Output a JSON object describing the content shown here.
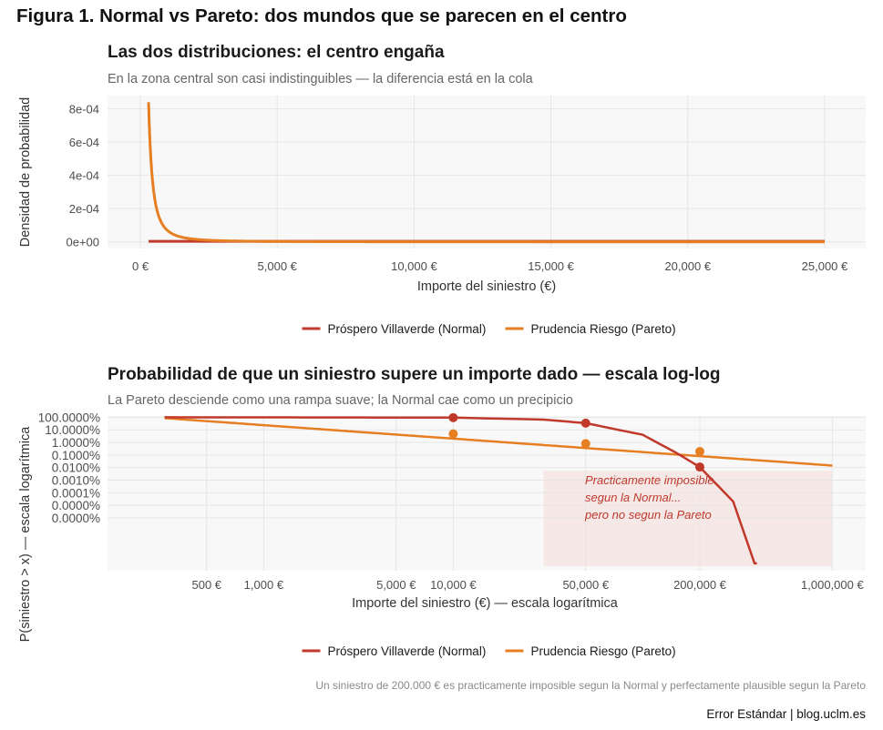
{
  "figure": {
    "title": "Figura 1. Normal vs Pareto: dos mundos que se parecen en el centro",
    "footnote": "Un siniestro de 200.000 € es practicamente imposible segun la Normal y perfectamente plausible segun la Pareto",
    "credit": "Error Estándar | blog.uclm.es"
  },
  "colors": {
    "normal": "#c0392b",
    "pareto": "#e67e22",
    "annotation_text": "#c0392b",
    "annotation_fill": "#f5e3e1"
  },
  "chart_data": [
    {
      "type": "line",
      "title": "Las dos distribuciones: el centro engaña",
      "subtitle": "En la zona central son casi indistinguibles — la diferencia está en la cola",
      "xlabel": "Importe del siniestro (€)",
      "ylabel": "Densidad de probabilidad",
      "xlim": [
        -1200,
        26500
      ],
      "ylim": [
        -4e-05,
        0.00088
      ],
      "x_ticks": [
        0,
        5000,
        10000,
        15000,
        20000,
        25000
      ],
      "x_tick_labels": [
        "0 €",
        "5,000 €",
        "10,000 €",
        "15,000 €",
        "20,000 €",
        "25,000 €"
      ],
      "y_ticks": [
        0,
        0.0002,
        0.0004,
        0.0006,
        0.0008
      ],
      "y_tick_labels": [
        "0e+00",
        "2e-04",
        "4e-04",
        "6e-04",
        "8e-04"
      ],
      "grid": true,
      "legend_position": "bottom",
      "series": [
        {
          "name": "Próspero Villaverde (Normal)",
          "key": "normal",
          "x_range": [
            300,
            25000
          ],
          "density_approx": 3e-06
        },
        {
          "name": "Prudencia Riesgo (Pareto)",
          "key": "pareto",
          "x_min": 300,
          "alpha": 1.1,
          "x_range": [
            300,
            25000
          ],
          "peak_density": 0.00084
        }
      ]
    },
    {
      "type": "line",
      "title": "Probabilidad de que un siniestro supere un importe dado — escala log-log",
      "subtitle": "La Pareto desciende como una rampa suave; la Normal cae como un precipicio",
      "xlabel": "Importe del siniestro (€) — escala logarítmica",
      "ylabel": "P(siniestro > x) — escala logarítmica",
      "x_scale": "log",
      "y_scale": "log",
      "xlim": [
        150,
        1500000
      ],
      "ylim_log10": [
        -12.2,
        0.1
      ],
      "x_ticks": [
        500,
        1000,
        5000,
        10000,
        50000,
        200000,
        1000000
      ],
      "x_tick_labels": [
        "500 €",
        "1,000 €",
        "5,000 €",
        "10,000 €",
        "50,000 €",
        "200,000 €",
        "1,000,000 €"
      ],
      "y_ticks": [
        1,
        0.1,
        0.01,
        0.001,
        0.0001,
        1e-05,
        1e-06,
        1e-07,
        1e-08
      ],
      "y_tick_labels": [
        "100.0000%",
        "10.0000%",
        "1.0000%",
        "0.1000%",
        "0.0100%",
        "0.0010%",
        "0.0001%",
        "0.0000%",
        "0.0000%"
      ],
      "grid": true,
      "legend_position": "bottom",
      "series": [
        {
          "name": "Próspero Villaverde (Normal)",
          "key": "normal",
          "curve": [
            [
              300,
              0.99
            ],
            [
              2000,
              0.97
            ],
            [
              10000,
              0.93
            ],
            [
              30000,
              0.65
            ],
            [
              50000,
              0.34
            ],
            [
              100000,
              0.04
            ],
            [
              150000,
              0.0015
            ],
            [
              200000,
              0.00011
            ],
            [
              300000,
              2e-07
            ],
            [
              400000,
              7e-13
            ]
          ],
          "markers": [
            [
              10000,
              0.93
            ],
            [
              50000,
              0.34
            ],
            [
              200000,
              0.00011
            ]
          ]
        },
        {
          "name": "Prudencia Riesgo (Pareto)",
          "key": "pareto",
          "x_min": 300,
          "alpha": 1.07,
          "x_range": [
            300,
            1000000
          ],
          "markers": [
            [
              10000,
              0.048
            ],
            [
              50000,
              0.008
            ],
            [
              200000,
              0.0019
            ]
          ]
        }
      ],
      "annotation": {
        "region_x": [
          30000,
          1000000
        ],
        "lines": [
          "Practicamente imposible",
          "segun la Normal...",
          "pero no segun la Pareto"
        ]
      }
    }
  ]
}
